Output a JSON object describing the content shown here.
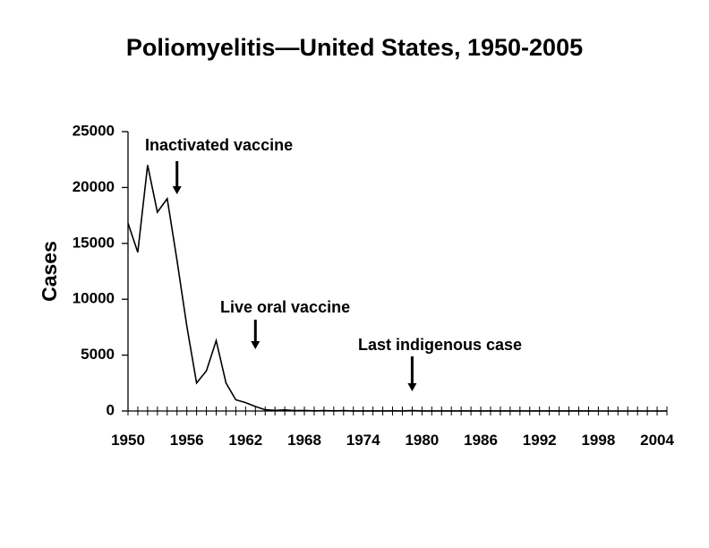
{
  "chart_data": {
    "type": "line",
    "title": "Poliomyelitis—United States, 1950-2005",
    "xlabel": "",
    "ylabel": "Cases",
    "xlim": [
      1950,
      2005
    ],
    "ylim": [
      0,
      25000
    ],
    "yticks": [
      "0",
      "5000",
      "10000",
      "15000",
      "20000",
      "25000"
    ],
    "xticks": [
      "1950",
      "1956",
      "1962",
      "1968",
      "1974",
      "1980",
      "1986",
      "1992",
      "1998",
      "2004"
    ],
    "grid": false,
    "series": [
      {
        "name": "",
        "color": "#000000",
        "x": [
          1950,
          1951,
          1952,
          1953,
          1954,
          1955,
          1956,
          1957,
          1958,
          1959,
          1960,
          1961,
          1962,
          1963,
          1964,
          1965,
          1966,
          1967,
          1968,
          1969,
          1970,
          1971,
          1972,
          1973,
          1974,
          1975,
          1976,
          1977,
          1978,
          1979,
          1980,
          1981,
          1982,
          1983,
          1984,
          1985,
          1986,
          1987,
          1988,
          1989,
          1990,
          1991,
          1992,
          1993,
          1994,
          1995,
          1996,
          1997,
          1998,
          1999,
          2000,
          2001,
          2002,
          2003,
          2004,
          2005
        ],
        "y": [
          16800,
          14200,
          22000,
          17800,
          19000,
          13500,
          7600,
          2500,
          3600,
          6300,
          2500,
          1000,
          750,
          400,
          110,
          60,
          100,
          40,
          50,
          20,
          30,
          20,
          30,
          10,
          10,
          10,
          10,
          20,
          10,
          30,
          10,
          10,
          10,
          10,
          10,
          10,
          10,
          10,
          10,
          10,
          10,
          10,
          10,
          10,
          10,
          10,
          10,
          10,
          0,
          0,
          0,
          0,
          0,
          0,
          0,
          0
        ]
      }
    ],
    "annotations": [
      {
        "text": "Inactivated vaccine",
        "x": 1955
      },
      {
        "text": "Live oral vaccine",
        "x": 1963
      },
      {
        "text": "Last indigenous case",
        "x": 1979
      }
    ]
  }
}
